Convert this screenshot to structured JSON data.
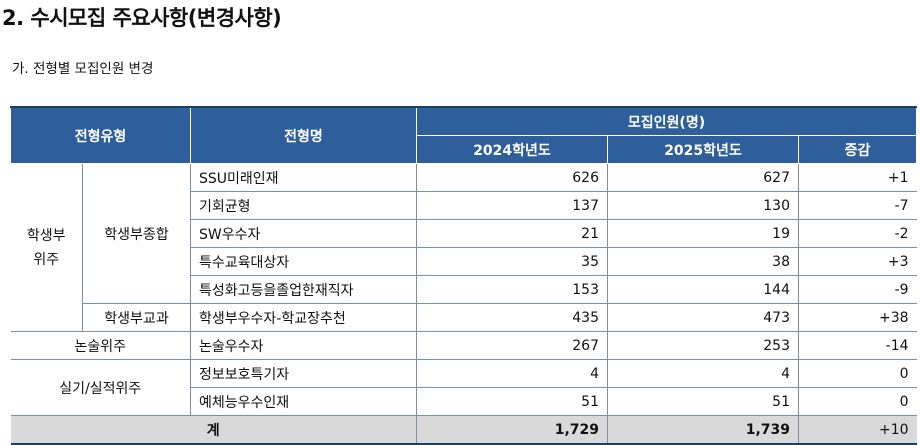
{
  "heading": "2. 수시모집 주요사항(변경사항)",
  "subheading": "가. 전형별 모집인원 변경",
  "table": {
    "headers": {
      "type": "전형유형",
      "name": "전형명",
      "recruit": "모집인원(명)",
      "y2024": "2024학년도",
      "y2025": "2025학년도",
      "diff": "증감"
    },
    "groups": {
      "g1": "학생부위주",
      "g1_line1": "학생부",
      "g1_line2": "위주",
      "g1_sub1": "학생부종합",
      "g1_sub2": "학생부교과",
      "g2": "논술위주",
      "g3": "실기/실적위주"
    },
    "rows": [
      {
        "name": "SSU미래인재",
        "y2024": "626",
        "y2025": "627",
        "diff": "+1"
      },
      {
        "name": "기회균형",
        "y2024": "137",
        "y2025": "130",
        "diff": "-7"
      },
      {
        "name": "SW우수자",
        "y2024": "21",
        "y2025": "19",
        "diff": "-2"
      },
      {
        "name": "특수교육대상자",
        "y2024": "35",
        "y2025": "38",
        "diff": "+3"
      },
      {
        "name": "특성화고등을졸업한재직자",
        "y2024": "153",
        "y2025": "144",
        "diff": "-9"
      },
      {
        "name": "학생부우수자-학교장추천",
        "y2024": "435",
        "y2025": "473",
        "diff": "+38"
      },
      {
        "name": "논술우수자",
        "y2024": "267",
        "y2025": "253",
        "diff": "-14"
      },
      {
        "name": "정보보호특기자",
        "y2024": "4",
        "y2025": "4",
        "diff": "0"
      },
      {
        "name": "예체능우수인재",
        "y2024": "51",
        "y2025": "51",
        "diff": "0"
      }
    ],
    "total": {
      "label": "계",
      "y2024": "1,729",
      "y2025": "1,739",
      "diff": "+10"
    }
  }
}
